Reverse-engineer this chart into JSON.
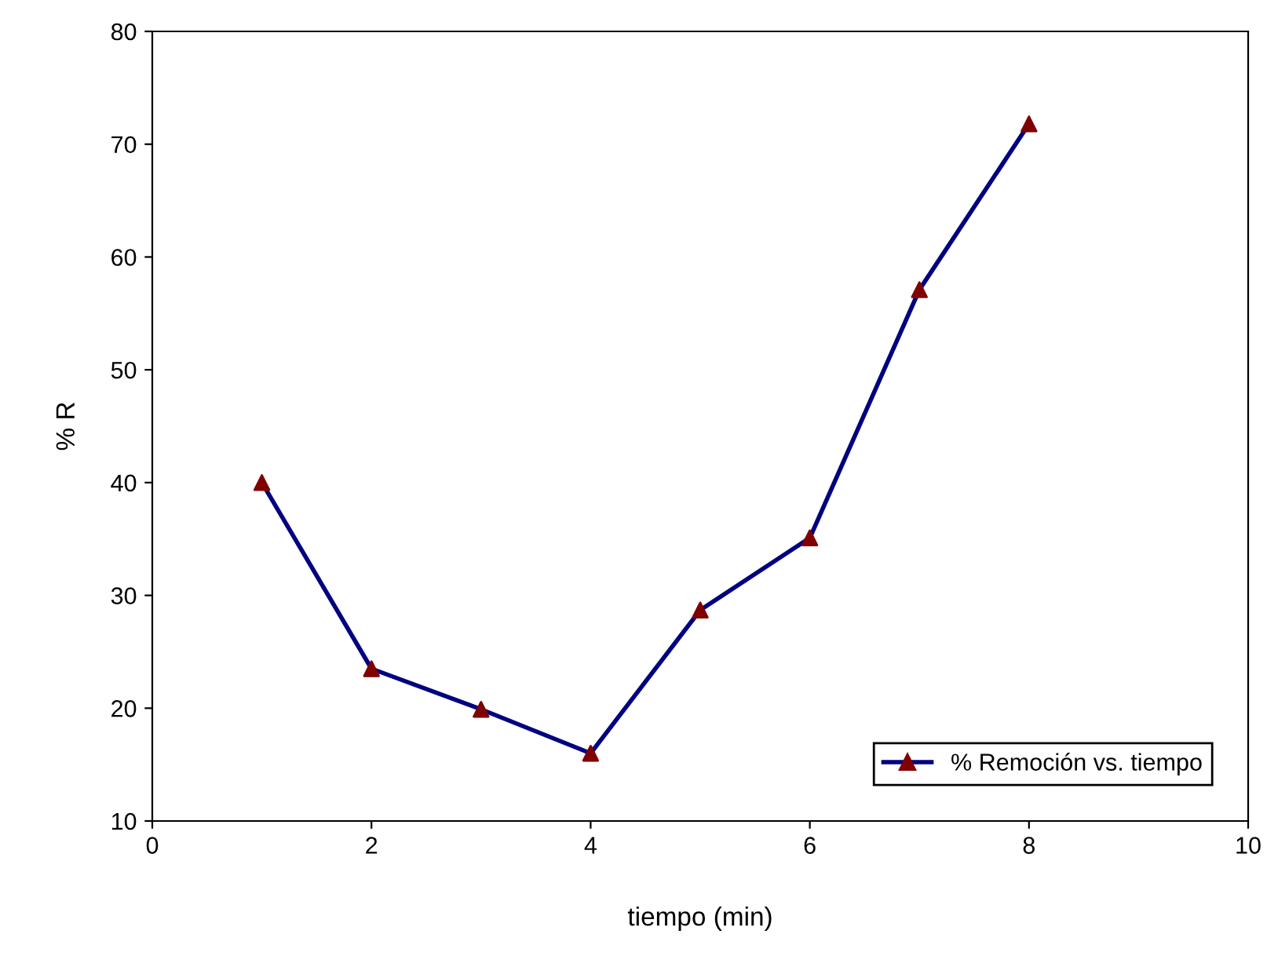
{
  "chart_data": {
    "type": "line",
    "xlabel": "tiempo (min)",
    "ylabel": "% R",
    "x": [
      1,
      2,
      3,
      4,
      5,
      6,
      7,
      8
    ],
    "series": [
      {
        "name": "% Remoción vs. tiempo",
        "color": "#000080",
        "colors": [
          "#800000",
          "#800000",
          "#800000",
          "#800000",
          "#800000",
          "#800000",
          "#800000",
          "#800000"
        ],
        "values": [
          40,
          23.5,
          19.9,
          16,
          28.7,
          35.1,
          57.1,
          71.8
        ]
      }
    ],
    "xlim": [
      0,
      10
    ],
    "xticks": [
      0,
      2,
      4,
      6,
      8,
      10
    ],
    "ylim": [
      10,
      80
    ],
    "yticks": [
      10,
      20,
      30,
      40,
      50,
      60,
      70,
      80
    ],
    "grid": false,
    "legend": "bottom right",
    "marker": "triangle",
    "line_style": "solid"
  }
}
